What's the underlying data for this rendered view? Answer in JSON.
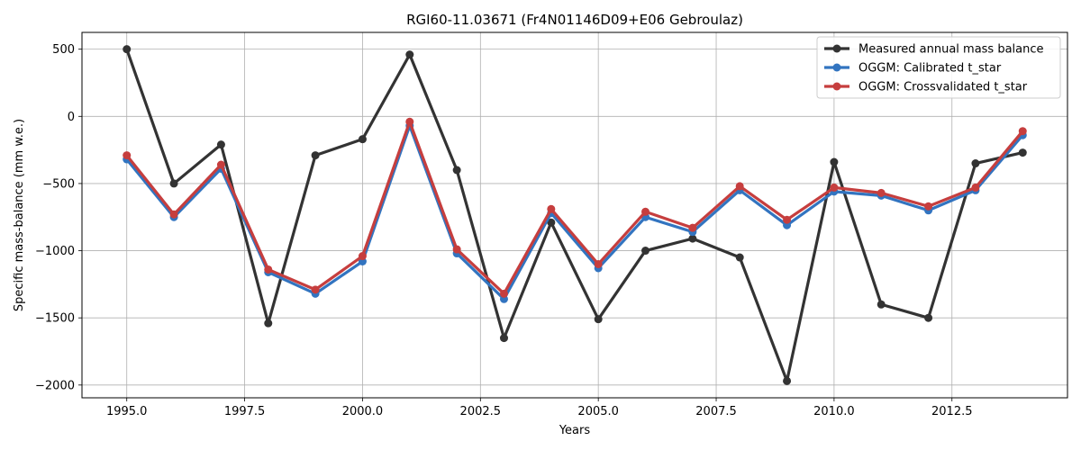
{
  "chart_data": {
    "type": "line",
    "title": "RGI60-11.03671 (Fr4N01146D09+E06 Gebroulaz)",
    "xlabel": "Years",
    "ylabel": "Specific mass-balance (mm w.e.)",
    "xlim": [
      1994.05,
      2014.95
    ],
    "ylim": [
      -2095,
      625
    ],
    "xticks": [
      1995.0,
      1997.5,
      2000.0,
      2002.5,
      2005.0,
      2007.5,
      2010.0,
      2012.5
    ],
    "xtick_labels": [
      "1995.0",
      "1997.5",
      "2000.0",
      "2002.5",
      "2005.0",
      "2007.5",
      "2010.0",
      "2012.5"
    ],
    "yticks": [
      500,
      0,
      -500,
      -1000,
      -1500,
      -2000
    ],
    "ytick_labels": [
      "500",
      "0",
      "−500",
      "−1000",
      "−1500",
      "−2000"
    ],
    "grid": true,
    "legend_position": "top-right",
    "x": [
      1995,
      1996,
      1997,
      1998,
      1999,
      2000,
      2001,
      2002,
      2003,
      2004,
      2005,
      2006,
      2007,
      2008,
      2009,
      2010,
      2011,
      2012,
      2013,
      2014
    ],
    "series": [
      {
        "name": "Measured annual mass balance",
        "color": "#333333",
        "values": [
          500,
          -500,
          -210,
          -1540,
          -290,
          -170,
          460,
          -400,
          -1650,
          -790,
          -1510,
          -1000,
          -910,
          -1050,
          -1970,
          -340,
          -1400,
          -1500,
          -350,
          -270
        ]
      },
      {
        "name": "OGGM: Calibrated t_star",
        "color": "#3274c0",
        "values": [
          -320,
          -750,
          -390,
          -1160,
          -1320,
          -1080,
          -70,
          -1020,
          -1360,
          -720,
          -1130,
          -750,
          -860,
          -550,
          -810,
          -560,
          -590,
          -700,
          -550,
          -140
        ]
      },
      {
        "name": "OGGM: Crossvalidated t_star",
        "color": "#c63e3e",
        "values": [
          -290,
          -730,
          -360,
          -1140,
          -1290,
          -1040,
          -40,
          -990,
          -1320,
          -690,
          -1100,
          -710,
          -830,
          -520,
          -770,
          -530,
          -570,
          -670,
          -530,
          -110
        ]
      }
    ]
  }
}
